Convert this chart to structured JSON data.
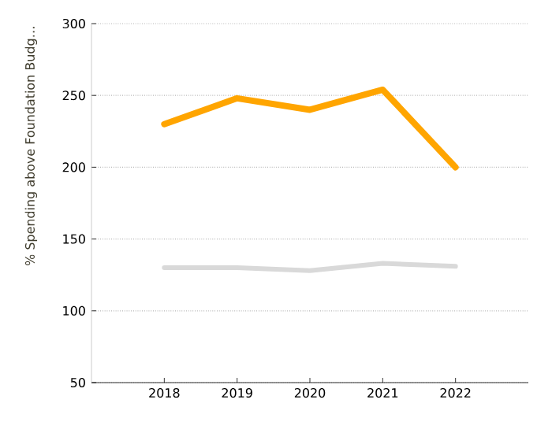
{
  "chart_data": {
    "type": "line",
    "ylabel": "% Spending above Foundation Budg…",
    "categories": [
      "2018",
      "2019",
      "2020",
      "2021",
      "2022"
    ],
    "series": [
      {
        "color": "#ffa500",
        "values": [
          230,
          248,
          240,
          254,
          200
        ]
      },
      {
        "color": "#d9d9d9",
        "values": [
          130,
          130,
          128,
          133,
          131
        ]
      }
    ],
    "ylim": [
      50,
      300
    ],
    "yticks": [
      50,
      100,
      150,
      200,
      250,
      300
    ],
    "grid": "y",
    "marker": "none",
    "line_style": "solid"
  }
}
